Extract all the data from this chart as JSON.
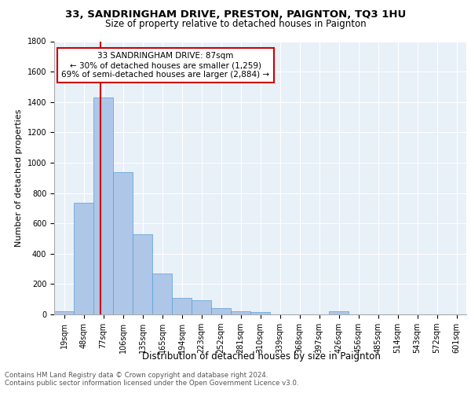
{
  "title1": "33, SANDRINGHAM DRIVE, PRESTON, PAIGNTON, TQ3 1HU",
  "title2": "Size of property relative to detached houses in Paignton",
  "xlabel": "Distribution of detached houses by size in Paignton",
  "ylabel": "Number of detached properties",
  "bin_labels": [
    "19sqm",
    "48sqm",
    "77sqm",
    "106sqm",
    "135sqm",
    "165sqm",
    "194sqm",
    "223sqm",
    "252sqm",
    "281sqm",
    "310sqm",
    "339sqm",
    "368sqm",
    "397sqm",
    "426sqm",
    "456sqm",
    "485sqm",
    "514sqm",
    "543sqm",
    "572sqm",
    "601sqm"
  ],
  "bar_heights": [
    22,
    738,
    1430,
    935,
    530,
    268,
    110,
    95,
    42,
    20,
    14,
    0,
    0,
    0,
    20,
    0,
    0,
    0,
    0,
    0,
    0
  ],
  "bar_color": "#aec6e8",
  "bar_edge_color": "#5a9fd4",
  "vline_color": "#cc0000",
  "annotation_text": "33 SANDRINGHAM DRIVE: 87sqm\n← 30% of detached houses are smaller (1,259)\n69% of semi-detached houses are larger (2,884) →",
  "annotation_box_color": "#ffffff",
  "annotation_box_edge": "#cc0000",
  "ylim": [
    0,
    1800
  ],
  "footer": "Contains HM Land Registry data © Crown copyright and database right 2024.\nContains public sector information licensed under the Open Government Licence v3.0.",
  "bg_color": "#e8f0f8",
  "title1_fontsize": 9.5,
  "title2_fontsize": 8.5,
  "ylabel_fontsize": 8,
  "xlabel_fontsize": 8.5,
  "tick_fontsize": 7,
  "footer_fontsize": 6.2
}
